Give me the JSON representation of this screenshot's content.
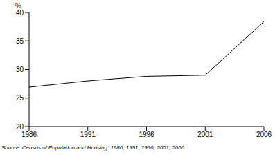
{
  "chart_data": {
    "type": "line",
    "y_label": "%",
    "note": "Source: Census of Population and Housing: 1986, 1991, 1996, 2001, 2006",
    "categories": [
      "1986",
      "1991",
      "1996",
      "2001",
      "2006"
    ],
    "values": [
      26.9,
      28.0,
      28.8,
      29.0,
      38.4
    ],
    "color": "#000000",
    "ylim": [
      20,
      40
    ],
    "yticks": [
      20,
      25,
      30,
      35,
      40
    ],
    "grid": false,
    "legend": false
  }
}
